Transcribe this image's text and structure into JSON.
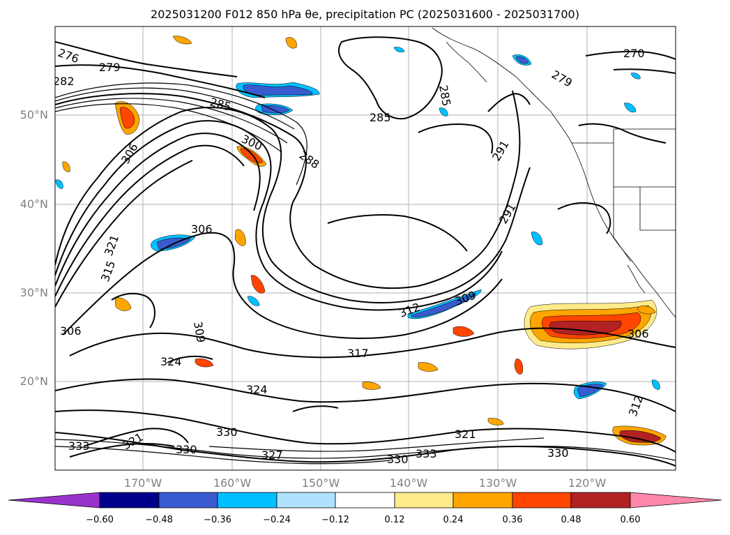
{
  "title": "2025031200 F012 850 hPa θe, precipitation PC (2025031600 - 2025031700)",
  "lat_labels": [
    "50°N",
    "40°N",
    "30°N",
    "20°N"
  ],
  "lon_labels": [
    "170°W",
    "160°W",
    "150°W",
    "140°W",
    "130°W",
    "120°W"
  ],
  "contour_labels": [
    "276",
    "279",
    "282",
    "285",
    "285",
    "285",
    "288",
    "291",
    "291",
    "270",
    "279",
    "306",
    "300",
    "306",
    "321",
    "315",
    "309",
    "309",
    "306",
    "312",
    "317",
    "324",
    "324",
    "330",
    "330",
    "333",
    "333",
    "327",
    "321",
    "330",
    "330",
    "312",
    "306",
    "321"
  ],
  "colorbar": {
    "tick_labels": [
      "−0.60",
      "−0.48",
      "−0.36",
      "−0.24",
      "−0.12",
      "0.12",
      "0.24",
      "0.36",
      "0.48",
      "0.60"
    ],
    "colors": [
      "#9933cc",
      "#00008b",
      "#3a5bcf",
      "#00bfff",
      "#b0e2ff",
      "#ffffff",
      "#ffeb8a",
      "#ffa500",
      "#ff4500",
      "#b22222",
      "#ff88aa"
    ]
  },
  "colors": {
    "contour": "#000000",
    "grid": "#b0b0b0",
    "coastline": "#000000",
    "axis_label": "#808080"
  }
}
